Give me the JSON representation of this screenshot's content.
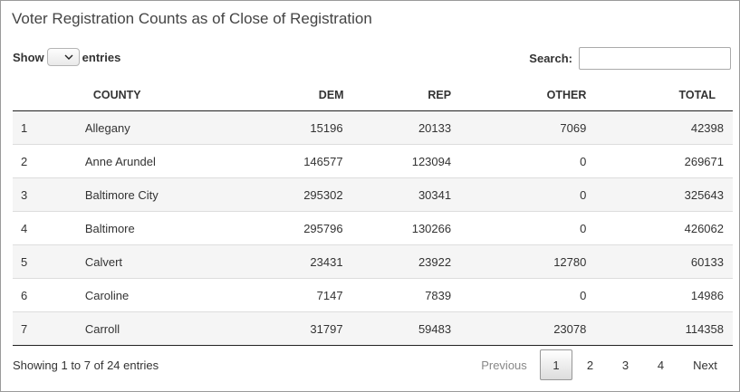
{
  "title": "Voter Registration Counts as of Close of Registration",
  "length": {
    "show_label": "Show",
    "entries_label": "entries",
    "selected": ""
  },
  "search": {
    "label": "Search:",
    "value": ""
  },
  "columns": [
    "",
    "COUNTY",
    "DEM",
    "REP",
    "OTHER",
    "TOTAL"
  ],
  "rows": [
    [
      "1",
      "Allegany",
      "15196",
      "20133",
      "7069",
      "42398"
    ],
    [
      "2",
      "Anne Arundel",
      "146577",
      "123094",
      "0",
      "269671"
    ],
    [
      "3",
      "Baltimore City",
      "295302",
      "30341",
      "0",
      "325643"
    ],
    [
      "4",
      "Baltimore",
      "295796",
      "130266",
      "0",
      "426062"
    ],
    [
      "5",
      "Calvert",
      "23431",
      "23922",
      "12780",
      "60133"
    ],
    [
      "6",
      "Caroline",
      "7147",
      "7839",
      "0",
      "14986"
    ],
    [
      "7",
      "Carroll",
      "31797",
      "59483",
      "23078",
      "114358"
    ]
  ],
  "info": "Showing 1 to 7 of 24 entries",
  "pagination": {
    "previous": "Previous",
    "pages": [
      "1",
      "2",
      "3",
      "4"
    ],
    "current": "1",
    "next": "Next"
  },
  "icons": {
    "length_select": "chevron-down-icon"
  }
}
